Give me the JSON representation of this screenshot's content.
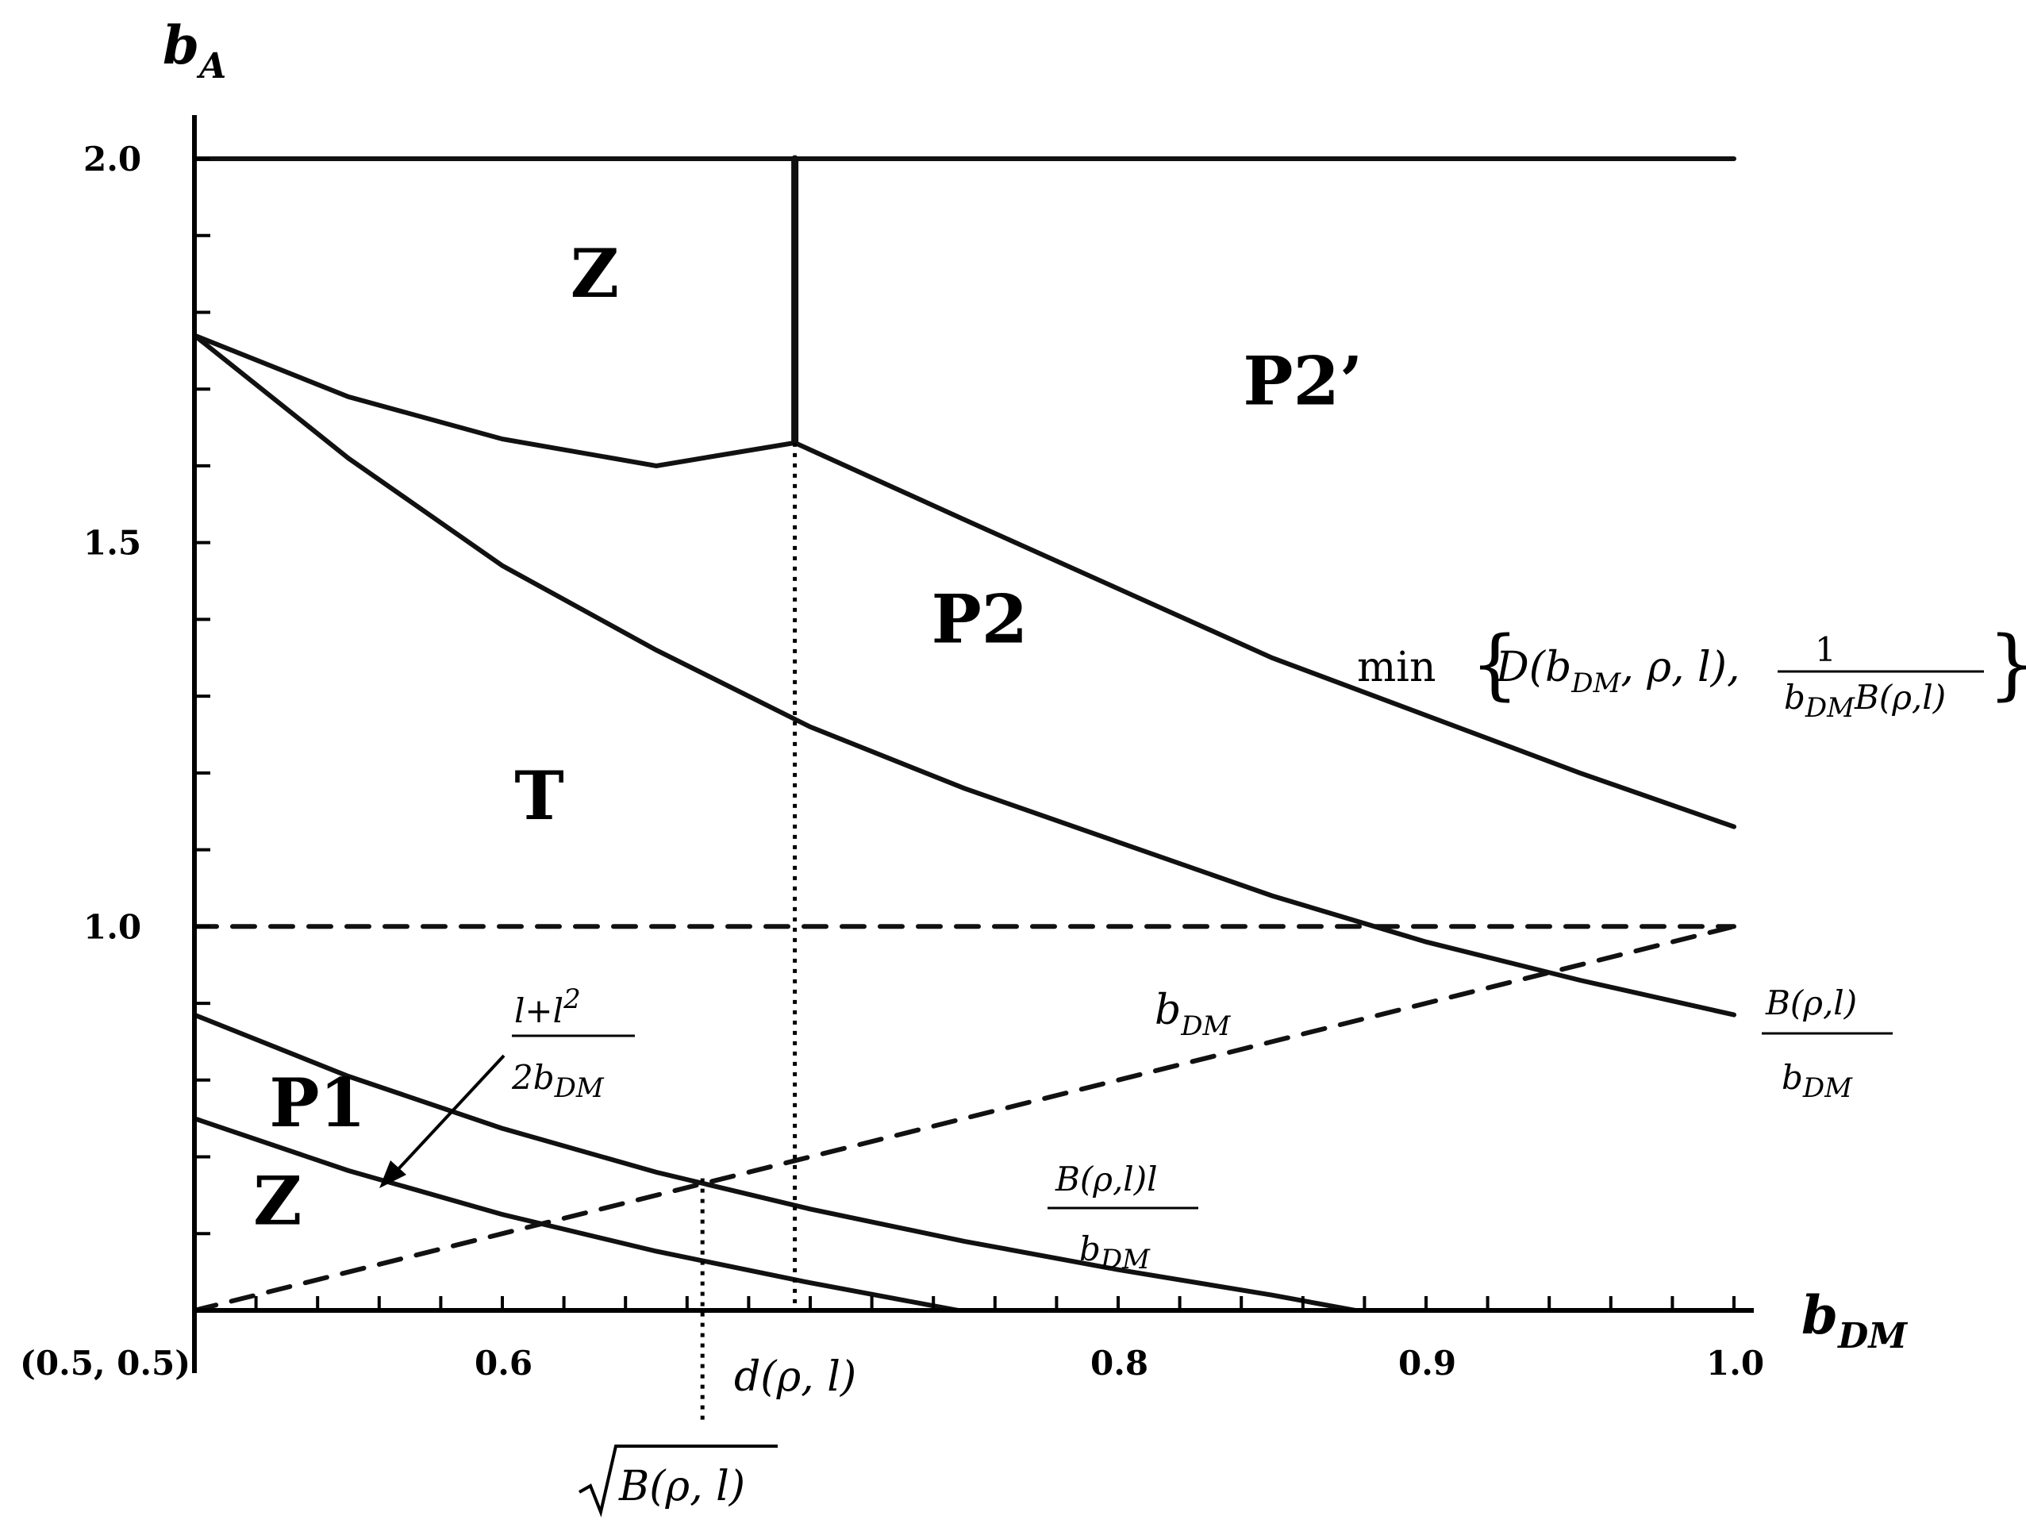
{
  "chart_data": {
    "type": "line",
    "y_axis_label": "b",
    "y_axis_label_sub": "A",
    "x_axis_label": "b",
    "x_axis_label_sub": "DM",
    "origin_label": "(0.5, 0.5)",
    "xlim": [
      0.5,
      1.0
    ],
    "ylim": [
      0.5,
      2.0
    ],
    "y_tick_labels": [
      {
        "value": 2.0,
        "label": "2.0"
      },
      {
        "value": 1.5,
        "label": "1.5"
      },
      {
        "value": 1.0,
        "label": "1.0"
      }
    ],
    "x_tick_labels": [
      {
        "value": 0.6,
        "label": "0.6"
      },
      {
        "value": 0.8,
        "label": "0.8"
      },
      {
        "value": 0.9,
        "label": "0.9"
      },
      {
        "value": 1.0,
        "label": "1.0"
      }
    ],
    "regions": [
      {
        "label": "Z",
        "x": 0.63,
        "y": 1.82
      },
      {
        "label": "P2’",
        "x": 0.86,
        "y": 1.68
      },
      {
        "label": "P2",
        "x": 0.755,
        "y": 1.37
      },
      {
        "label": "T",
        "x": 0.612,
        "y": 1.14
      },
      {
        "label": "P1",
        "x": 0.54,
        "y": 0.74
      },
      {
        "label": "Z",
        "x": 0.527,
        "y": 0.612
      }
    ],
    "series": [
      {
        "style": "solid",
        "x": [
          0.5,
          0.55,
          0.6,
          0.65,
          0.695,
          0.75,
          0.8,
          0.85,
          0.9,
          0.95,
          1.0
        ],
        "y": [
          1.77,
          1.69,
          1.635,
          1.6,
          1.63,
          1.53,
          1.44,
          1.35,
          1.275,
          1.2,
          1.13
        ]
      },
      {
        "style": "solid",
        "x": [
          0.5,
          0.55,
          0.6,
          0.65,
          0.7,
          0.75,
          0.8,
          0.85,
          0.9,
          0.95,
          1.0
        ],
        "y": [
          1.77,
          1.61,
          1.47,
          1.36,
          1.26,
          1.18,
          1.11,
          1.04,
          0.98,
          0.93,
          0.885
        ]
      },
      {
        "style": "solid",
        "x": [
          0.5,
          0.55,
          0.6,
          0.65,
          0.7,
          0.75,
          0.8,
          0.85,
          0.877
        ],
        "y": [
          0.885,
          0.805,
          0.737,
          0.68,
          0.632,
          0.59,
          0.553,
          0.52,
          0.5
        ]
      },
      {
        "style": "solid",
        "x": [
          0.5,
          0.55,
          0.6,
          0.65,
          0.7,
          0.748
        ],
        "y": [
          0.75,
          0.682,
          0.625,
          0.577,
          0.536,
          0.5
        ]
      },
      {
        "style": "dashed",
        "x": [
          0.5,
          1.0
        ],
        "y": [
          0.5,
          1.0
        ]
      },
      {
        "style": "dashed",
        "x": [
          0.5,
          1.0
        ],
        "y": [
          1.0,
          1.0
        ]
      },
      {
        "style": "solid",
        "x": [
          0.5,
          1.0
        ],
        "y": [
          2.0,
          2.0
        ]
      },
      {
        "style": "thick",
        "x": [
          0.695,
          0.695
        ],
        "y": [
          1.63,
          2.0
        ]
      }
    ],
    "dotted_verticals": [
      {
        "x": 0.695,
        "y_top": 1.63,
        "y_bottom": 0.5
      },
      {
        "x": 0.665,
        "y_top": 0.672,
        "y_bottom": 0.35
      }
    ],
    "annotations": {
      "min_prefix": "min",
      "d_label": "D(b",
      "d_sub": "DM",
      "d_rest": ", ρ, l),",
      "frac1_num": "1",
      "frac1_den_b": "b",
      "frac1_den_sub": "DM",
      "frac1_den_rest": "B(ρ,l)",
      "b_over_num": "B(ρ,l)",
      "b_over_den": "b",
      "b_over_den_sub": "DM",
      "bdm_b": "b",
      "bdm_sub": "DM",
      "bl_num": "B(ρ,l)l",
      "bl_den": "b",
      "bl_den_sub": "DM",
      "ll_num_a": "l+l",
      "ll_num_sup": "2",
      "ll_den": "2b",
      "ll_den_sub": "DM",
      "d_rho_l": "d(ρ, l)",
      "sqrt_content": "B(ρ, l)"
    }
  }
}
